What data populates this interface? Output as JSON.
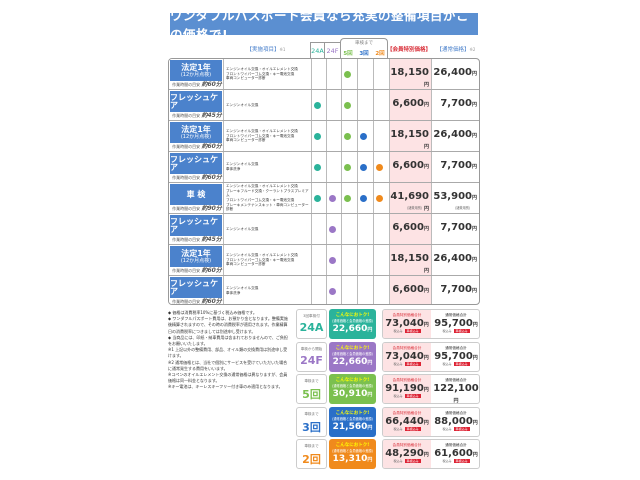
{
  "title": "ワンダフルパスポート会員なら充実の整備項目がこの価格で!",
  "header": {
    "items": "【実施項目】",
    "items_note": "※1",
    "col_24a": "24A",
    "col_24f": "24F",
    "group": "車検まで",
    "col_5": "5回",
    "col_3": "3回",
    "col_2": "2回",
    "member": "【会員特別価格】",
    "normal": "【通常価格】",
    "normal_note": "※2"
  },
  "colors": {
    "24A": "#2bb39b",
    "24F": "#9b77c6",
    "5": "#7bc04f",
    "3": "#2a6fc8",
    "2": "#f08a1c",
    "blue": "#4b82cc"
  },
  "rows": [
    {
      "name": "法定1年",
      "sub": "(12か月点検)",
      "time_label": "作業時間の目安",
      "time": "約60分",
      "items": [
        "エンジンオイル交換・オイルエレメント交換",
        "フロントワイパーゴム交換・キー電池交換",
        "車両コンピューター診断"
      ],
      "dots": [
        false,
        false,
        true,
        false,
        false
      ],
      "member": "18,150",
      "normal": "26,400",
      "yen": "円"
    },
    {
      "name": "フレッシュケア",
      "sub": "",
      "time_label": "作業時間の目安",
      "time": "約45分",
      "items": [
        "エンジンオイル交換"
      ],
      "dots": [
        true,
        false,
        true,
        false,
        false
      ],
      "member": "6,600",
      "normal": "7,700",
      "yen": "円"
    },
    {
      "name": "法定1年",
      "sub": "(12か月点検)",
      "time_label": "作業時間の目安",
      "time": "約60分",
      "items": [
        "エンジンオイル交換・オイルエレメント交換",
        "フロントワイパーゴム交換・キー電池交換",
        "車両コンピューター診断"
      ],
      "dots": [
        true,
        false,
        true,
        true,
        false
      ],
      "member": "18,150",
      "normal": "26,400",
      "yen": "円"
    },
    {
      "name": "フレッシュケア",
      "sub": "",
      "time_label": "作業時間の目安",
      "time": "約60分",
      "items": [
        "エンジンオイル交換",
        "車体洗浄"
      ],
      "dots": [
        true,
        false,
        true,
        true,
        true
      ],
      "member": "6,600",
      "normal": "7,700",
      "yen": "円"
    },
    {
      "name": "車 検",
      "sub": "",
      "time_label": "作業時間の目安",
      "time": "約90分",
      "items": [
        "エンジンオイル交換・オイルエレメント交換",
        "ブレーキフルード交換・クーラントプラスプレミアム",
        "フロントワイパーゴム交換・キー電池交換",
        "ブレーキメンテナンスキット・車両コンピューター診断"
      ],
      "dots": [
        true,
        true,
        true,
        true,
        true
      ],
      "member": "41,690",
      "normal": "53,900",
      "yen": "円",
      "note": "(諸費用別)"
    },
    {
      "name": "フレッシュケア",
      "sub": "",
      "time_label": "作業時間の目安",
      "time": "約45分",
      "items": [
        "エンジンオイル交換"
      ],
      "dots": [
        false,
        true,
        false,
        false,
        false
      ],
      "member": "6,600",
      "normal": "7,700",
      "yen": "円"
    },
    {
      "name": "法定1年",
      "sub": "(12か月点検)",
      "time_label": "作業時間の目安",
      "time": "約60分",
      "items": [
        "エンジンオイル交換・オイルエレメント交換",
        "フロントワイパーゴム交換・キー電池交換",
        "車両コンピューター診断"
      ],
      "dots": [
        false,
        true,
        false,
        false,
        false
      ],
      "member": "18,150",
      "normal": "26,400",
      "yen": "円"
    },
    {
      "name": "フレッシュケア",
      "sub": "",
      "time_label": "作業時間の目安",
      "time": "約60分",
      "items": [
        "エンジンオイル交換",
        "車体洗浄"
      ],
      "dots": [
        false,
        true,
        false,
        false,
        false
      ],
      "member": "6,600",
      "normal": "7,700",
      "yen": "円"
    }
  ],
  "footnotes": [
    "◆ 価格は消費税率10%に基づく税込み価格です。",
    "◆ ワンダフルパスポート費用は、お預かり金となります。整備実施後精算されますので、その時の消費税率が適用されます。作業精算日の消費税率につきましては別途申し受けます。",
    "◆ 当商品には、印紙・納車費用は含まれておりませんので、ご負担をお願いいたします。",
    "※1 上記以外の整備費用、部品、オイル類の交換費用は別途申し受けます。",
    "※2 通常価格とは、当社で個別にサービスを受けていただいた場合に通常発生する費用をいいます。",
    "※コペンのオイルエレメント交換の通常価格は異なりますが、会員価格は同一料金となります。",
    "※キー電池は、キーレスキーフリー付き車のみ適用となります。"
  ],
  "cards": [
    {
      "sub": "3回車検付",
      "plan": "24A",
      "color": "#2bb39b",
      "save_head": "こんなにおトク!",
      "save_sub": "(通常価格と会員価格の差額)",
      "save": "22,660",
      "member_label": "会員特別価格合計",
      "member": "73,040",
      "normal_label": "通常価格合計",
      "normal": "95,700",
      "tax": "税込み",
      "badge": "車検込み",
      "yen": "円"
    },
    {
      "sub": "車検から開始",
      "plan": "24F",
      "color": "#9b77c6",
      "save_head": "こんなにおトク!",
      "save_sub": "(通常価格と会員価格の差額)",
      "save": "22,660",
      "member_label": "会員特別価格合計",
      "member": "73,040",
      "normal_label": "通常価格合計",
      "normal": "95,700",
      "tax": "税込み",
      "badge": "車検込み",
      "yen": "円"
    },
    {
      "sub": "車検まで",
      "plan": "5回",
      "color": "#7bc04f",
      "save_head": "こんなにおトク!",
      "save_sub": "(通常価格と会員価格の差額)",
      "save": "30,910",
      "member_label": "会員特別価格合計",
      "member": "91,190",
      "normal_label": "通常価格合計",
      "normal": "122,100",
      "tax": "税込み",
      "badge": "車検込み",
      "yen": "円"
    },
    {
      "sub": "車検まで",
      "plan": "3回",
      "color": "#2a6fc8",
      "save_head": "こんなにおトク!",
      "save_sub": "(通常価格と会員価格の差額)",
      "save": "21,560",
      "member_label": "会員特別価格合計",
      "member": "66,440",
      "normal_label": "通常価格合計",
      "normal": "88,000",
      "tax": "税込み",
      "badge": "車検込み",
      "yen": "円"
    },
    {
      "sub": "車検まで",
      "plan": "2回",
      "color": "#f08a1c",
      "save_head": "こんなにおトク!",
      "save_sub": "(通常価格と会員価格の差額)",
      "save": "13,310",
      "member_label": "会員特別価格合計",
      "member": "48,290",
      "normal_label": "通常価格合計",
      "normal": "61,600",
      "tax": "税込み",
      "badge": "車検込み",
      "yen": "円"
    }
  ]
}
